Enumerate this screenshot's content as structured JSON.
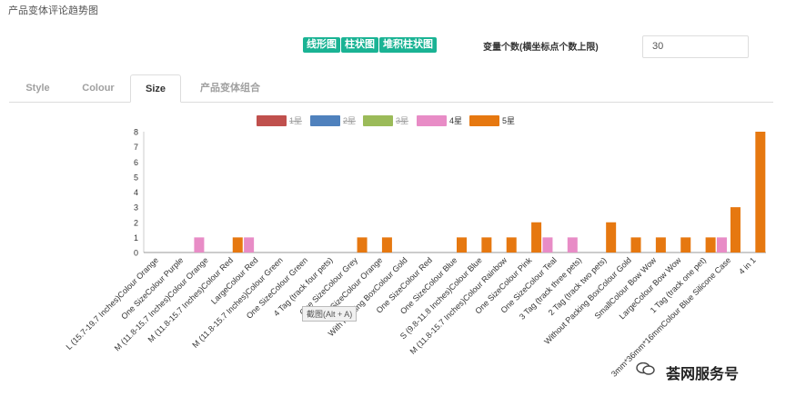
{
  "page": {
    "title": "产品变体评论趋势图"
  },
  "toolbar": {
    "buttons": [
      "线形图",
      "柱状图",
      "堆积柱状图"
    ],
    "var_label": "变量个数(横坐标点个数上限)",
    "var_value": "30"
  },
  "tabs": [
    "Style",
    "Colour",
    "Size",
    "产品变体组合"
  ],
  "active_tab": "Size",
  "tooltip": "截图(Alt + A)",
  "watermark": {
    "text": "荟网服务号",
    "icon": "wechat-icon"
  },
  "colors": {
    "accent": "#1ab394",
    "series": [
      "#c0504d",
      "#4f81bd",
      "#9bbb59",
      "#e88cc6",
      "#e67810"
    ]
  },
  "chart_data": {
    "type": "bar",
    "legend_position": "top",
    "ylim": [
      0,
      8
    ],
    "yticks": [
      0,
      1,
      2,
      3,
      4,
      5,
      6,
      7,
      8
    ],
    "categories": [
      "L (15.7-19.7 Inches)Colour Orange",
      "One SizeColour Purple",
      "M (11.8-15.7 Inches)Colour Orange",
      "M (11.8-15.7 Inches)Colour Red",
      "LargeColour Red",
      "M (11.8-15.7 Inches)Colour Green",
      "One SizeColour Green",
      "4 Tag (track four pets)",
      "One SizeColour Grey",
      "One SizeColour Orange",
      "With Packing BoxColour Gold",
      "One SizeColour Red",
      "One SizeColour Blue",
      "S (9.8-11.8 Inches)Colour Blue",
      "M (11.8-15.7 Inches)Colour Rainbow",
      "One SizeColour Pink",
      "One SizeColour Teal",
      "3 Tag (track three pets)",
      "2 Tag (track two pets)",
      "Without Packing BoxColour Gold",
      "SmallColour Bow Wow",
      "LargeColour Bow Wow",
      "1 Tag (track one pet)",
      "3mm*36mm*16mmColour Blue Silicone Case",
      "4 in 1"
    ],
    "series": [
      {
        "name": "1星",
        "disabled": true,
        "values": [
          0,
          0,
          0,
          0,
          0,
          0,
          0,
          0,
          0,
          0,
          0,
          0,
          0,
          0,
          0,
          0,
          0,
          0,
          0,
          0,
          0,
          0,
          0,
          0,
          0
        ]
      },
      {
        "name": "2星",
        "disabled": true,
        "values": [
          0,
          0,
          0,
          0,
          0,
          0,
          0,
          0,
          0,
          0,
          0,
          0,
          0,
          0,
          0,
          0,
          0,
          0,
          0,
          0,
          0,
          0,
          0,
          0,
          0
        ]
      },
      {
        "name": "3星",
        "disabled": true,
        "values": [
          0,
          0,
          0,
          0,
          0,
          0,
          0,
          0,
          0,
          0,
          0,
          0,
          0,
          0,
          0,
          0,
          0,
          0,
          0,
          0,
          0,
          0,
          0,
          0,
          0
        ]
      },
      {
        "name": "4星",
        "values": [
          0,
          0,
          1,
          0,
          1,
          0,
          0,
          0,
          0,
          0,
          0,
          0,
          0,
          0,
          0,
          0,
          1,
          1,
          0,
          0,
          0,
          0,
          0,
          1,
          0
        ]
      },
      {
        "name": "5星",
        "values": [
          0,
          0,
          0,
          1,
          0,
          0,
          0,
          0,
          1,
          1,
          0,
          0,
          1,
          1,
          1,
          2,
          0,
          0,
          2,
          1,
          1,
          1,
          1,
          3,
          8
        ]
      }
    ]
  }
}
